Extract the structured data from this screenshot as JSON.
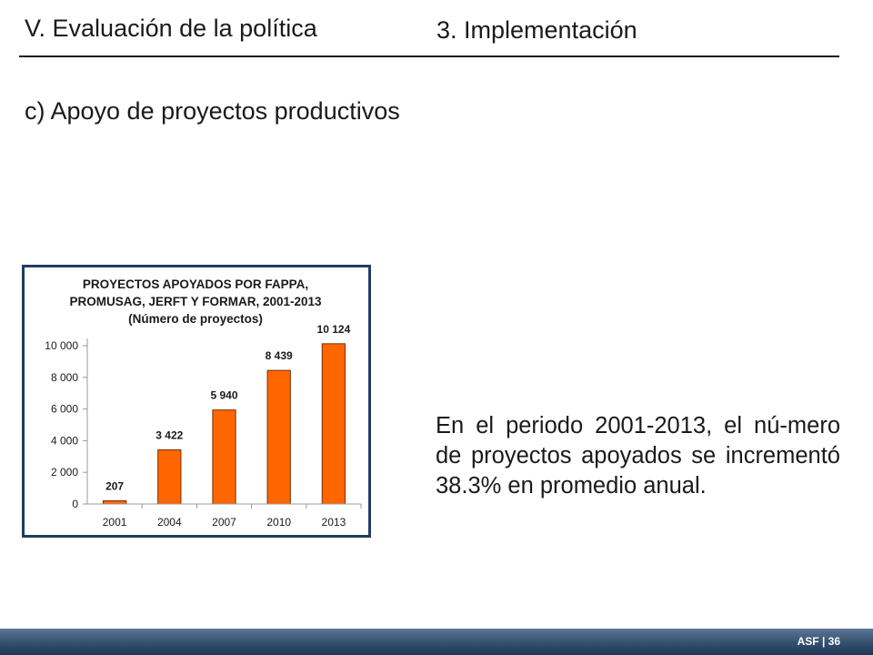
{
  "header": {
    "section": "V. Evaluación de la política",
    "subsection": "3. Implementación"
  },
  "subtitle": "c) Apoyo de proyectos productivos",
  "chart_data": {
    "type": "bar",
    "title_lines": [
      "PROYECTOS APOYADOS POR FAPPA,",
      "PROMUSAG, JERFT Y FORMAR, 2001-2013",
      "(Número de proyectos)"
    ],
    "categories": [
      "2001",
      "2004",
      "2007",
      "2010",
      "2013"
    ],
    "values": [
      207,
      3422,
      5940,
      8439,
      10124
    ],
    "data_labels": [
      "207",
      "3 422",
      "5 940",
      "8 439",
      "10 124"
    ],
    "y_ticks": [
      0,
      2000,
      4000,
      6000,
      8000,
      10000
    ],
    "y_tick_labels": [
      "0",
      "2 000",
      "4 000",
      "6 000",
      "8 000",
      "10 000"
    ],
    "ylim": [
      0,
      10000
    ],
    "bar_color": "#ff6600",
    "grid": false,
    "legend": "none"
  },
  "body_text": "En el periodo 2001-2013, el nú-mero de proyectos apoyados se incrementó 38.3% en promedio anual.",
  "footer": {
    "label": "ASF | 36",
    "bar_color": "#34506f"
  }
}
